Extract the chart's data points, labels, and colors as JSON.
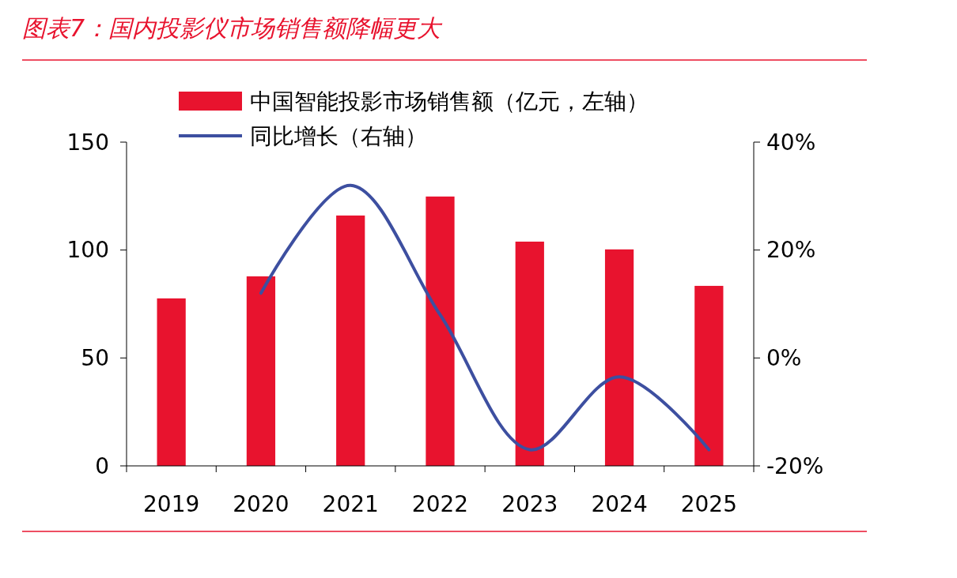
{
  "chart_data": {
    "type": "bar",
    "title": "图表7：国内投影仪市场销售额降幅更大",
    "categories": [
      "2019",
      "2020",
      "2021",
      "2022",
      "2023",
      "2024",
      "2025"
    ],
    "series": [
      {
        "name": "中国智能投影市场销售额（亿元，左轴）",
        "color": "#e8132e",
        "values": [
          77.6,
          87.8,
          116,
          124.8,
          103.9,
          100.3,
          83.4
        ]
      },
      {
        "name": "同比增长（右轴）",
        "type": "line",
        "axis": "y2",
        "color": "#3d4fa0",
        "values": [
          null,
          12,
          32,
          8,
          -17,
          -3.5,
          -17
        ]
      }
    ],
    "ylim": [
      0,
      150
    ],
    "yticks": [
      0,
      50,
      100,
      150
    ],
    "y2lim": [
      -20,
      40
    ],
    "y2ticks": [
      {
        "value": -20,
        "label": "-20%"
      },
      {
        "value": 0,
        "label": "0%"
      },
      {
        "value": 20,
        "label": "20%"
      },
      {
        "value": 40,
        "label": "40%"
      }
    ],
    "grid": false,
    "legend": "top"
  }
}
